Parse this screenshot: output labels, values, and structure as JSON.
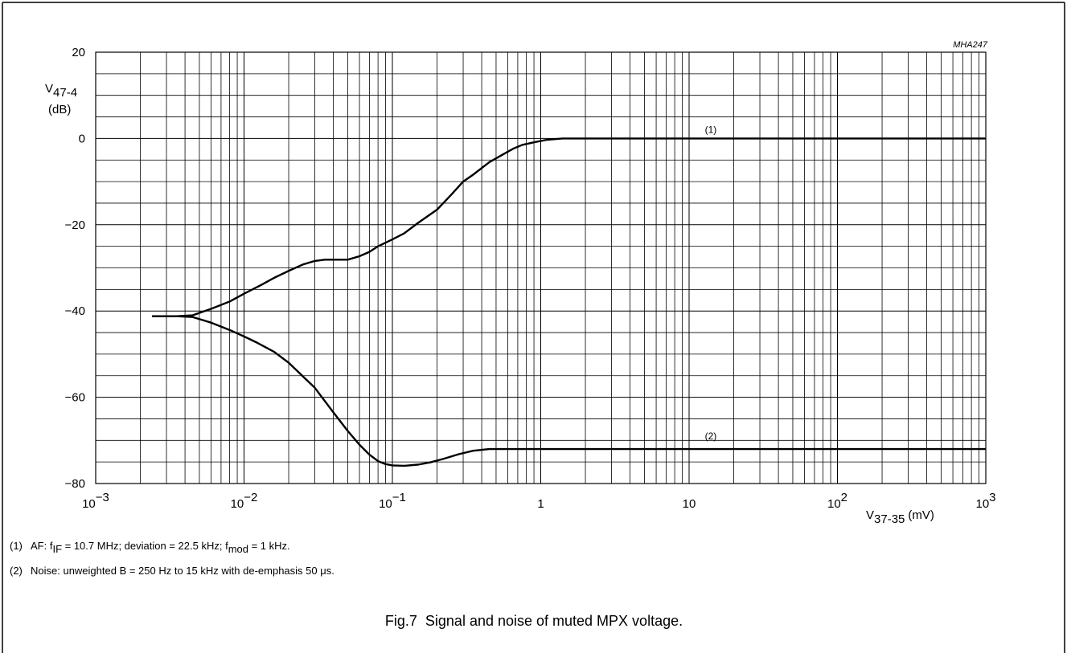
{
  "chart_data": {
    "type": "line",
    "figure_id": "MHA247",
    "ylabel": {
      "main": "V",
      "sub": "47-4",
      "unit": "(dB)"
    },
    "xlabel": {
      "main": "V",
      "sub": "37-35",
      "unit": "(mV)"
    },
    "x_scale": "log",
    "xlim": [
      0.001,
      1000
    ],
    "ylim": [
      -80,
      20
    ],
    "grid": true,
    "y_ticks": [
      {
        "value": 20,
        "label": "20"
      },
      {
        "value": 0,
        "label": "0"
      },
      {
        "value": -20,
        "label": "−20"
      },
      {
        "value": -40,
        "label": "−40"
      },
      {
        "value": -60,
        "label": "−60"
      },
      {
        "value": -80,
        "label": "−80"
      }
    ],
    "x_ticks": [
      {
        "value": 0.001,
        "base": "10",
        "exp": "−3"
      },
      {
        "value": 0.01,
        "base": "10",
        "exp": "−2"
      },
      {
        "value": 0.1,
        "base": "10",
        "exp": "−1"
      },
      {
        "value": 1,
        "base": "1",
        "exp": ""
      },
      {
        "value": 10,
        "base": "10",
        "exp": ""
      },
      {
        "value": 100,
        "base": "10",
        "exp": "2"
      },
      {
        "value": 1000,
        "base": "10",
        "exp": "3"
      }
    ],
    "series": [
      {
        "name": "(1)",
        "label_at": [
          14,
          2
        ],
        "points": [
          [
            0.0024,
            -41.2
          ],
          [
            0.0035,
            -41.2
          ],
          [
            0.0045,
            -41.0
          ],
          [
            0.006,
            -39.5
          ],
          [
            0.008,
            -37.8
          ],
          [
            0.01,
            -36.0
          ],
          [
            0.013,
            -34.0
          ],
          [
            0.016,
            -32.3
          ],
          [
            0.02,
            -30.7
          ],
          [
            0.025,
            -29.2
          ],
          [
            0.03,
            -28.4
          ],
          [
            0.035,
            -28.1
          ],
          [
            0.04,
            -28.1
          ],
          [
            0.05,
            -28.1
          ],
          [
            0.06,
            -27.3
          ],
          [
            0.07,
            -26.3
          ],
          [
            0.08,
            -25.0
          ],
          [
            0.1,
            -23.4
          ],
          [
            0.12,
            -22.0
          ],
          [
            0.15,
            -19.5
          ],
          [
            0.2,
            -16.5
          ],
          [
            0.25,
            -13.0
          ],
          [
            0.3,
            -10.0
          ],
          [
            0.35,
            -8.4
          ],
          [
            0.45,
            -5.5
          ],
          [
            0.55,
            -3.8
          ],
          [
            0.65,
            -2.4
          ],
          [
            0.75,
            -1.5
          ],
          [
            0.9,
            -0.9
          ],
          [
            1.1,
            -0.3
          ],
          [
            1.4,
            0
          ],
          [
            10,
            0
          ],
          [
            100,
            0
          ],
          [
            1000,
            0
          ]
        ]
      },
      {
        "name": "(2)",
        "label_at": [
          14,
          -69
        ],
        "points": [
          [
            0.0024,
            -41.2
          ],
          [
            0.0035,
            -41.2
          ],
          [
            0.0045,
            -41.4
          ],
          [
            0.006,
            -42.7
          ],
          [
            0.008,
            -44.4
          ],
          [
            0.01,
            -45.9
          ],
          [
            0.012,
            -47.2
          ],
          [
            0.016,
            -49.5
          ],
          [
            0.02,
            -52.0
          ],
          [
            0.03,
            -57.8
          ],
          [
            0.04,
            -63.5
          ],
          [
            0.05,
            -67.8
          ],
          [
            0.06,
            -71.0
          ],
          [
            0.07,
            -73.3
          ],
          [
            0.08,
            -74.8
          ],
          [
            0.09,
            -75.5
          ],
          [
            0.1,
            -75.8
          ],
          [
            0.12,
            -75.9
          ],
          [
            0.15,
            -75.6
          ],
          [
            0.18,
            -75.1
          ],
          [
            0.22,
            -74.3
          ],
          [
            0.28,
            -73.2
          ],
          [
            0.35,
            -72.4
          ],
          [
            0.45,
            -72.0
          ],
          [
            1,
            -72.0
          ],
          [
            10,
            -72.0
          ],
          [
            100,
            -72.0
          ],
          [
            1000,
            -72.0
          ]
        ]
      }
    ]
  },
  "notes": [
    {
      "num": "(1)",
      "pre": "AF: f",
      "sub1": "IF",
      "mid": " = 10.7 MHz; deviation = 22.5 kHz; f",
      "sub2": "mod",
      "post": " = 1 kHz."
    },
    {
      "num": "(2)",
      "pre": "Noise: unweighted B = 250 Hz to 15 kHz with de-emphasis 50 μs.",
      "sub1": "",
      "mid": "",
      "sub2": "",
      "post": ""
    }
  ],
  "caption": {
    "label": "Fig.7",
    "text": "Signal and noise of muted MPX voltage."
  }
}
